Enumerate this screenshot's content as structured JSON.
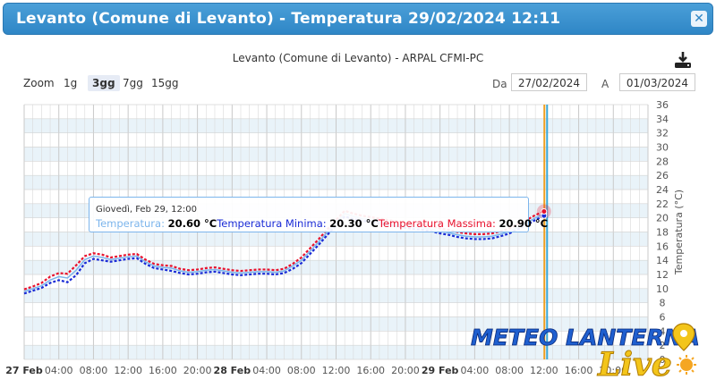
{
  "window": {
    "title": "Levanto (Comune di Levanto) - Temperatura 29/02/2024 12:11",
    "close_icon": "close-icon"
  },
  "chart_header": {
    "subtitle": "Levanto (Comune di Levanto) - ARPAL CFMI-PC",
    "download_icon": "download-icon"
  },
  "zoom": {
    "label": "Zoom",
    "options": [
      "1g",
      "3gg",
      "7gg",
      "15gg"
    ],
    "active": "3gg"
  },
  "range": {
    "from_label": "Da",
    "from_value": "27/02/2024",
    "to_label": "A",
    "to_value": "01/03/2024"
  },
  "tooltip": {
    "header": "Giovedì, Feb 29, 12:00",
    "items": [
      {
        "label": "Temperatura",
        "value": "20.60 °C",
        "color": "#7cb5ec"
      },
      {
        "label": "Temperatura Minima",
        "value": "20.30 °C",
        "color": "#1a2bd6"
      },
      {
        "label": "Temperatura Massima",
        "value": "20.90 °C",
        "color": "#e8112d"
      }
    ]
  },
  "logo": {
    "line1": "METEO LANTERNA",
    "line2": "Live"
  },
  "chart_data": {
    "type": "line",
    "ylabel": "Temperatura (°C)",
    "ylim": [
      0,
      36
    ],
    "ytick_step": 2,
    "y_ticks": [
      "0",
      "2",
      "4",
      "6",
      "8",
      "10",
      "12",
      "14",
      "16",
      "18",
      "20",
      "22",
      "24",
      "26",
      "28",
      "30",
      "32",
      "34",
      "36"
    ],
    "x_range_hours": [
      0,
      72
    ],
    "x_ticks": [
      {
        "h": 0,
        "label": "27 Feb",
        "bold": true
      },
      {
        "h": 4,
        "label": "04:00"
      },
      {
        "h": 8,
        "label": "08:00"
      },
      {
        "h": 12,
        "label": "12:00"
      },
      {
        "h": 16,
        "label": "16:00"
      },
      {
        "h": 20,
        "label": "20:00"
      },
      {
        "h": 24,
        "label": "28 Feb",
        "bold": true
      },
      {
        "h": 28,
        "label": "04:00"
      },
      {
        "h": 32,
        "label": "08:00"
      },
      {
        "h": 36,
        "label": "12:00"
      },
      {
        "h": 40,
        "label": "16:00"
      },
      {
        "h": 44,
        "label": "20:00"
      },
      {
        "h": 48,
        "label": "29 Feb",
        "bold": true
      },
      {
        "h": 52,
        "label": "04:00"
      },
      {
        "h": 56,
        "label": "08:00"
      },
      {
        "h": 60,
        "label": "12:00"
      },
      {
        "h": 64,
        "label": "16:00"
      },
      {
        "h": 68,
        "label": "20:00"
      }
    ],
    "now_marker_hours": 60.2,
    "x_hours": [
      0,
      1,
      2,
      3,
      4,
      5,
      6,
      7,
      8,
      9,
      10,
      11,
      12,
      13,
      14,
      15,
      16,
      17,
      18,
      19,
      20,
      21,
      22,
      23,
      24,
      25,
      26,
      27,
      28,
      29,
      30,
      31,
      32,
      33,
      34,
      35,
      36,
      37,
      38,
      39,
      40,
      41,
      42,
      43,
      44,
      45,
      46,
      47,
      48,
      49,
      50,
      51,
      52,
      53,
      54,
      55,
      56,
      57,
      58,
      59,
      60
    ],
    "series": [
      {
        "name": "Temperatura",
        "color": "#7cb5ec",
        "values": [
          9.6,
          10.0,
          10.4,
          11.2,
          11.7,
          11.5,
          12.6,
          14.1,
          14.6,
          14.4,
          14.1,
          14.3,
          14.5,
          14.6,
          13.8,
          13.2,
          13.0,
          12.9,
          12.5,
          12.3,
          12.4,
          12.6,
          12.7,
          12.5,
          12.3,
          12.2,
          12.3,
          12.4,
          12.4,
          12.3,
          12.5,
          13.2,
          14.0,
          15.3,
          16.6,
          18.0,
          19.3,
          20.6,
          20.2,
          19.9,
          19.7,
          19.5,
          19.3,
          19.1,
          18.9,
          18.7,
          18.6,
          18.4,
          18.1,
          17.9,
          17.6,
          17.4,
          17.3,
          17.3,
          17.4,
          17.7,
          18.1,
          18.7,
          19.3,
          20.0,
          20.6
        ]
      },
      {
        "name": "Temperatura Minima",
        "color": "#1a2bd6",
        "values": [
          9.3,
          9.7,
          10.1,
          10.8,
          11.2,
          10.9,
          11.9,
          13.6,
          14.2,
          14.0,
          13.8,
          14.0,
          14.2,
          14.3,
          13.5,
          12.9,
          12.7,
          12.5,
          12.2,
          12.0,
          12.1,
          12.3,
          12.4,
          12.2,
          12.0,
          11.9,
          12.0,
          12.1,
          12.1,
          12.0,
          12.2,
          12.8,
          13.6,
          14.9,
          16.2,
          17.6,
          18.9,
          20.2,
          19.8,
          19.6,
          19.4,
          19.2,
          19.0,
          18.8,
          18.6,
          18.4,
          18.3,
          18.1,
          17.8,
          17.6,
          17.3,
          17.1,
          17.0,
          17.0,
          17.1,
          17.4,
          17.8,
          18.4,
          19.0,
          19.7,
          20.3
        ]
      },
      {
        "name": "Temperatura Massima",
        "color": "#e8112d",
        "values": [
          9.9,
          10.3,
          10.8,
          11.7,
          12.2,
          12.1,
          13.3,
          14.6,
          15.0,
          14.8,
          14.4,
          14.6,
          14.8,
          14.9,
          14.1,
          13.5,
          13.3,
          13.2,
          12.8,
          12.6,
          12.7,
          12.9,
          13.0,
          12.8,
          12.6,
          12.5,
          12.6,
          12.7,
          12.7,
          12.6,
          12.8,
          13.5,
          14.4,
          15.7,
          17.0,
          18.4,
          19.7,
          21.0,
          20.6,
          20.3,
          20.1,
          19.9,
          19.7,
          19.5,
          19.3,
          19.1,
          19.0,
          18.8,
          18.5,
          18.3,
          18.0,
          17.8,
          17.7,
          17.7,
          17.8,
          18.1,
          18.5,
          19.1,
          19.7,
          20.4,
          20.9
        ]
      }
    ]
  }
}
